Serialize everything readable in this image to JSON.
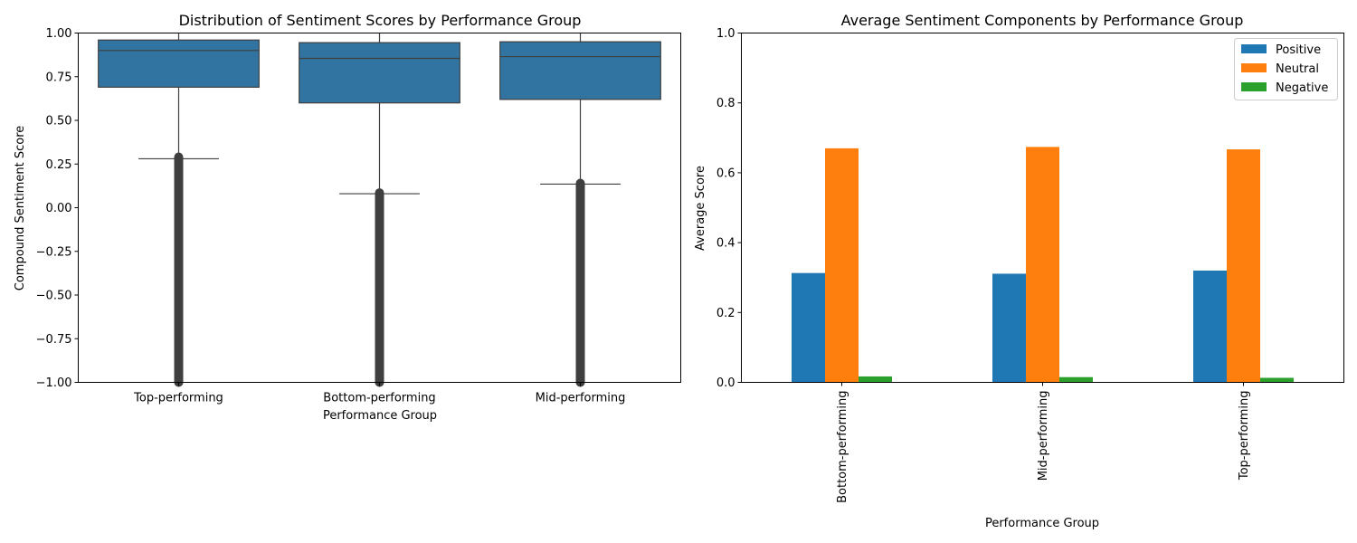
{
  "chart_data": [
    {
      "type": "box",
      "title": "Distribution of Sentiment Scores by Performance Group",
      "xlabel": "Performance Group",
      "ylabel": "Compound Sentiment Score",
      "ylim": [
        -1.0,
        1.0
      ],
      "yticks": [
        -1.0,
        -0.75,
        -0.5,
        -0.25,
        0.0,
        0.25,
        0.5,
        0.75,
        1.0
      ],
      "ytick_labels": [
        "−1.00",
        "−0.75",
        "−0.50",
        "−0.25",
        "0.00",
        "0.25",
        "0.50",
        "0.75",
        "1.00"
      ],
      "categories": [
        "Top-performing",
        "Bottom-performing",
        "Mid-performing"
      ],
      "boxes": [
        {
          "q1": 0.69,
          "median": 0.9,
          "q3": 0.96,
          "whisker_low": 0.28,
          "whisker_high": 1.0,
          "outlier_min": -1.0,
          "outlier_max": 0.29
        },
        {
          "q1": 0.6,
          "median": 0.855,
          "q3": 0.945,
          "whisker_low": 0.08,
          "whisker_high": 1.0,
          "outlier_min": -1.0,
          "outlier_max": 0.085
        },
        {
          "q1": 0.62,
          "median": 0.865,
          "q3": 0.95,
          "whisker_low": 0.135,
          "whisker_high": 1.0,
          "outlier_min": -1.0,
          "outlier_max": 0.14
        }
      ],
      "color": "#3274a1",
      "line_color": "#3f3f3f"
    },
    {
      "type": "bar",
      "title": "Average Sentiment Components by Performance Group",
      "xlabel": "Performance Group",
      "ylabel": "Average Score",
      "ylim": [
        0.0,
        1.0
      ],
      "yticks": [
        0.0,
        0.2,
        0.4,
        0.6,
        0.8,
        1.0
      ],
      "ytick_labels": [
        "0.0",
        "0.2",
        "0.4",
        "0.6",
        "0.8",
        "1.0"
      ],
      "categories": [
        "Bottom-performing",
        "Mid-performing",
        "Top-performing"
      ],
      "series": [
        {
          "name": "Positive",
          "color": "#1f77b4",
          "values": [
            0.313,
            0.311,
            0.32
          ]
        },
        {
          "name": "Neutral",
          "color": "#ff7f0e",
          "values": [
            0.67,
            0.674,
            0.667
          ]
        },
        {
          "name": "Negative",
          "color": "#2ca02c",
          "values": [
            0.017,
            0.015,
            0.013
          ]
        }
      ],
      "legend_position": "top-right"
    }
  ]
}
